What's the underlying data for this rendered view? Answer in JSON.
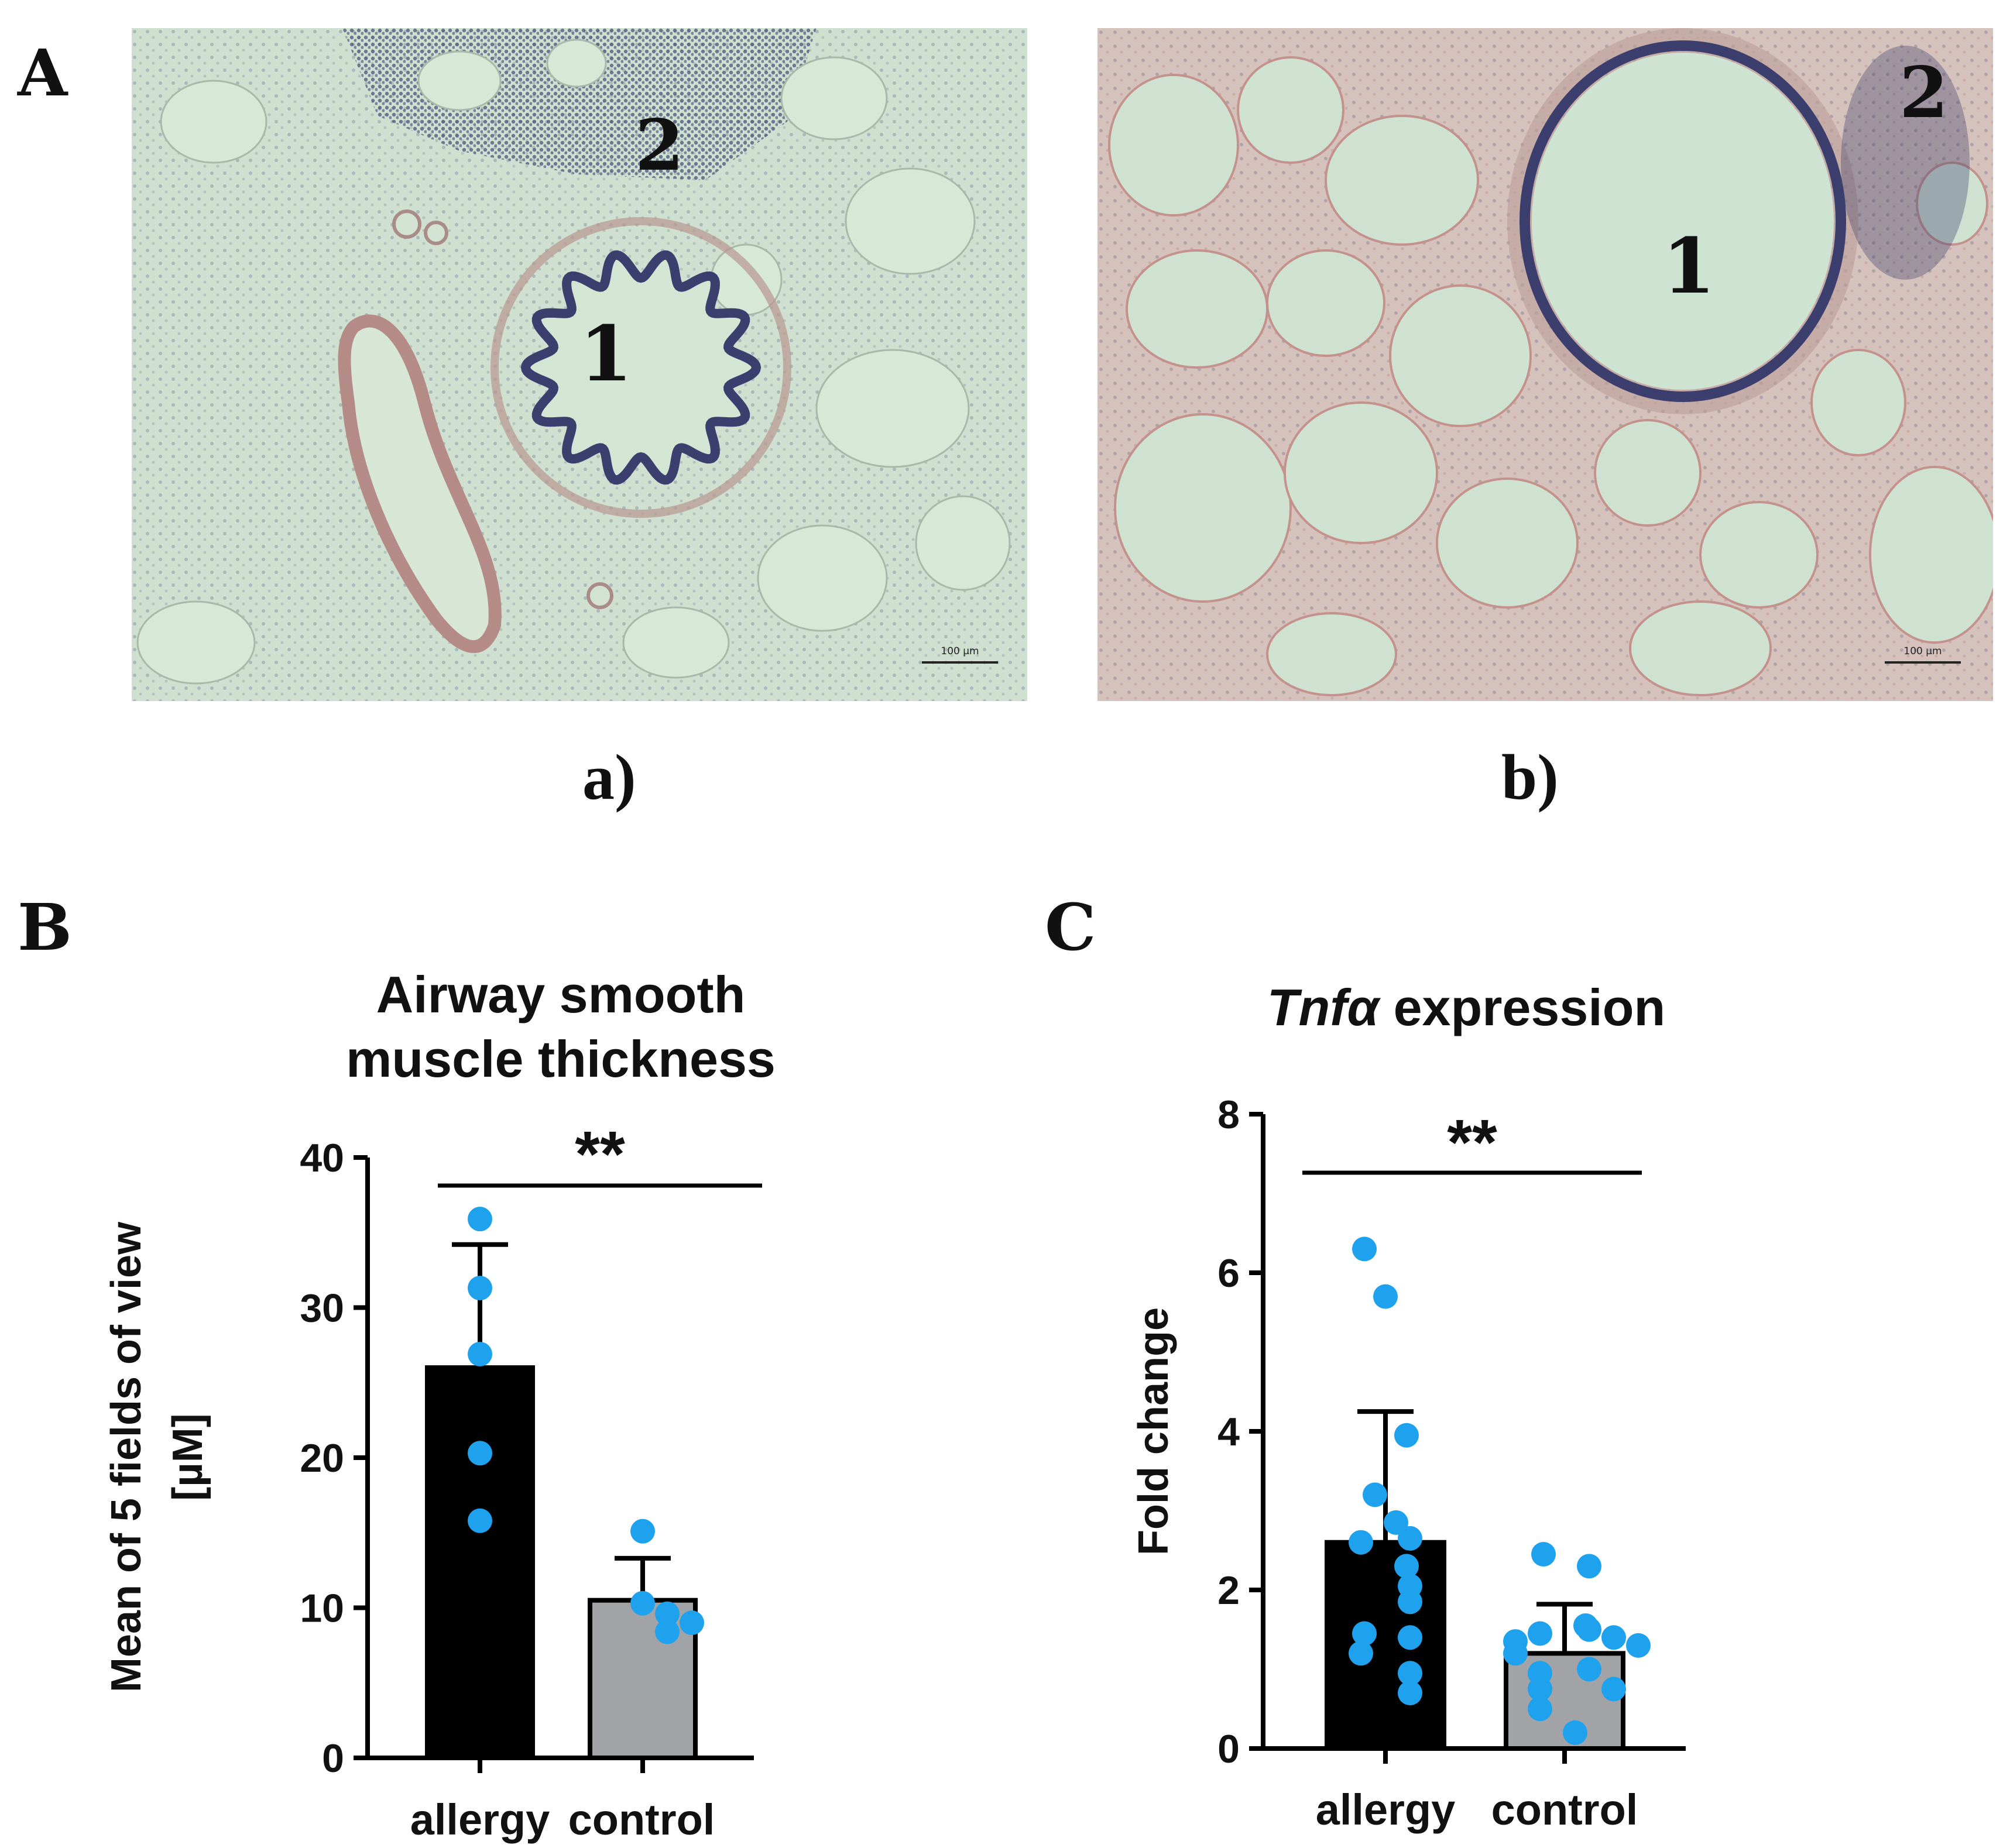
{
  "panels": {
    "A": "A",
    "B": "B",
    "C": "C"
  },
  "micrographs": [
    {
      "caption": "a)",
      "region_labels": [
        "1",
        "2"
      ],
      "scalebar": "100 µm",
      "colors": {
        "background": "#cfe3d3",
        "tissue": "#b7cbb9",
        "nuclei": "#2f3a6b",
        "stain": "#b98c8a"
      }
    },
    {
      "caption": "b)",
      "region_labels": [
        "1",
        "2"
      ],
      "scalebar": "100 µm",
      "colors": {
        "background": "#cfe3d3",
        "tissue": "#d8b7b0",
        "nuclei": "#3a3d6b",
        "stain": "#c78f8a"
      }
    }
  ],
  "chart_data": [
    {
      "type": "bar",
      "title": [
        "Airway smooth",
        "muscle thickness"
      ],
      "ylabel": [
        "Mean of 5 fields of view",
        "[µM]"
      ],
      "categories": [
        "allergy",
        "control"
      ],
      "values": [
        26,
        10.5
      ],
      "error": [
        8.2,
        2.8
      ],
      "points": [
        [
          35.9,
          31.3,
          26.9,
          20.3,
          15.8
        ],
        [
          15.1,
          10.3,
          9.6,
          8.4,
          9.0
        ]
      ],
      "ylim": [
        0,
        40
      ],
      "yticks": [
        0,
        10,
        20,
        30,
        40
      ],
      "significance": "**",
      "colors": {
        "bars": [
          "#000000",
          "#a2a3a6"
        ],
        "points": "#1fa2ee",
        "axis": "#000000"
      }
    },
    {
      "type": "bar",
      "title_italic": "Tnfα",
      "title_rest": " expression",
      "ylabel": "Fold change",
      "categories": [
        "allergy",
        "control"
      ],
      "values": [
        2.6,
        1.2
      ],
      "error": [
        1.65,
        0.62
      ],
      "points": [
        [
          6.3,
          5.7,
          3.95,
          3.2,
          2.85,
          2.65,
          2.6,
          2.3,
          2.05,
          1.85,
          1.45,
          1.4,
          1.2,
          0.95,
          0.7
        ],
        [
          2.45,
          2.3,
          1.55,
          1.5,
          1.45,
          1.4,
          1.35,
          1.3,
          1.2,
          1.0,
          0.95,
          0.75,
          0.75,
          0.5,
          0.2
        ]
      ],
      "ylim": [
        0,
        8
      ],
      "yticks": [
        0,
        2,
        4,
        6,
        8
      ],
      "significance": "**",
      "colors": {
        "bars": [
          "#000000",
          "#a2a3a6"
        ],
        "points": "#1fa2ee",
        "axis": "#000000"
      }
    }
  ]
}
